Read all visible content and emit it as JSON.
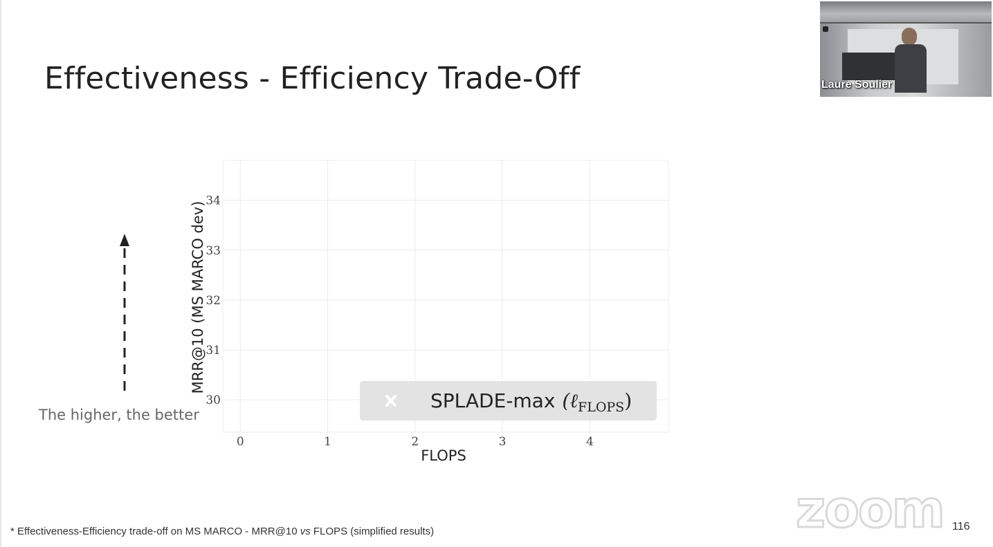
{
  "slide": {
    "title": "Effectiveness - Efficiency Trade-Off",
    "higher_label": "The higher, the better",
    "footnote_prefix": "* Effectiveness-Efficiency trade-off on MS MARCO - MRR@10 ",
    "footnote_vs": "vs",
    "footnote_suffix": " FLOPS (simplified results)",
    "page_number": "116"
  },
  "video": {
    "participant_name": "Laure Soulier"
  },
  "branding": {
    "logo_text": "zoom"
  },
  "chart_data": {
    "type": "scatter",
    "xlabel": "FLOPS",
    "ylabel": "MRR@10 (MS MARCO dev)",
    "xlim": [
      -0.2,
      4.9
    ],
    "ylim": [
      29.35,
      34.8
    ],
    "xticks": [
      "0",
      "1",
      "2",
      "3",
      "4"
    ],
    "yticks": [
      "30",
      "31",
      "32",
      "33",
      "34"
    ],
    "grid": true,
    "legend_position": "bottom-right",
    "legend_marker_color": "#ffffff",
    "legend_bg": "#e3e3e3",
    "series": [
      {
        "name": "SPLADE-max",
        "name_math": "(ℓ",
        "name_sub": "FLOPS",
        "name_close": ")",
        "marker": "x",
        "points": []
      }
    ]
  }
}
